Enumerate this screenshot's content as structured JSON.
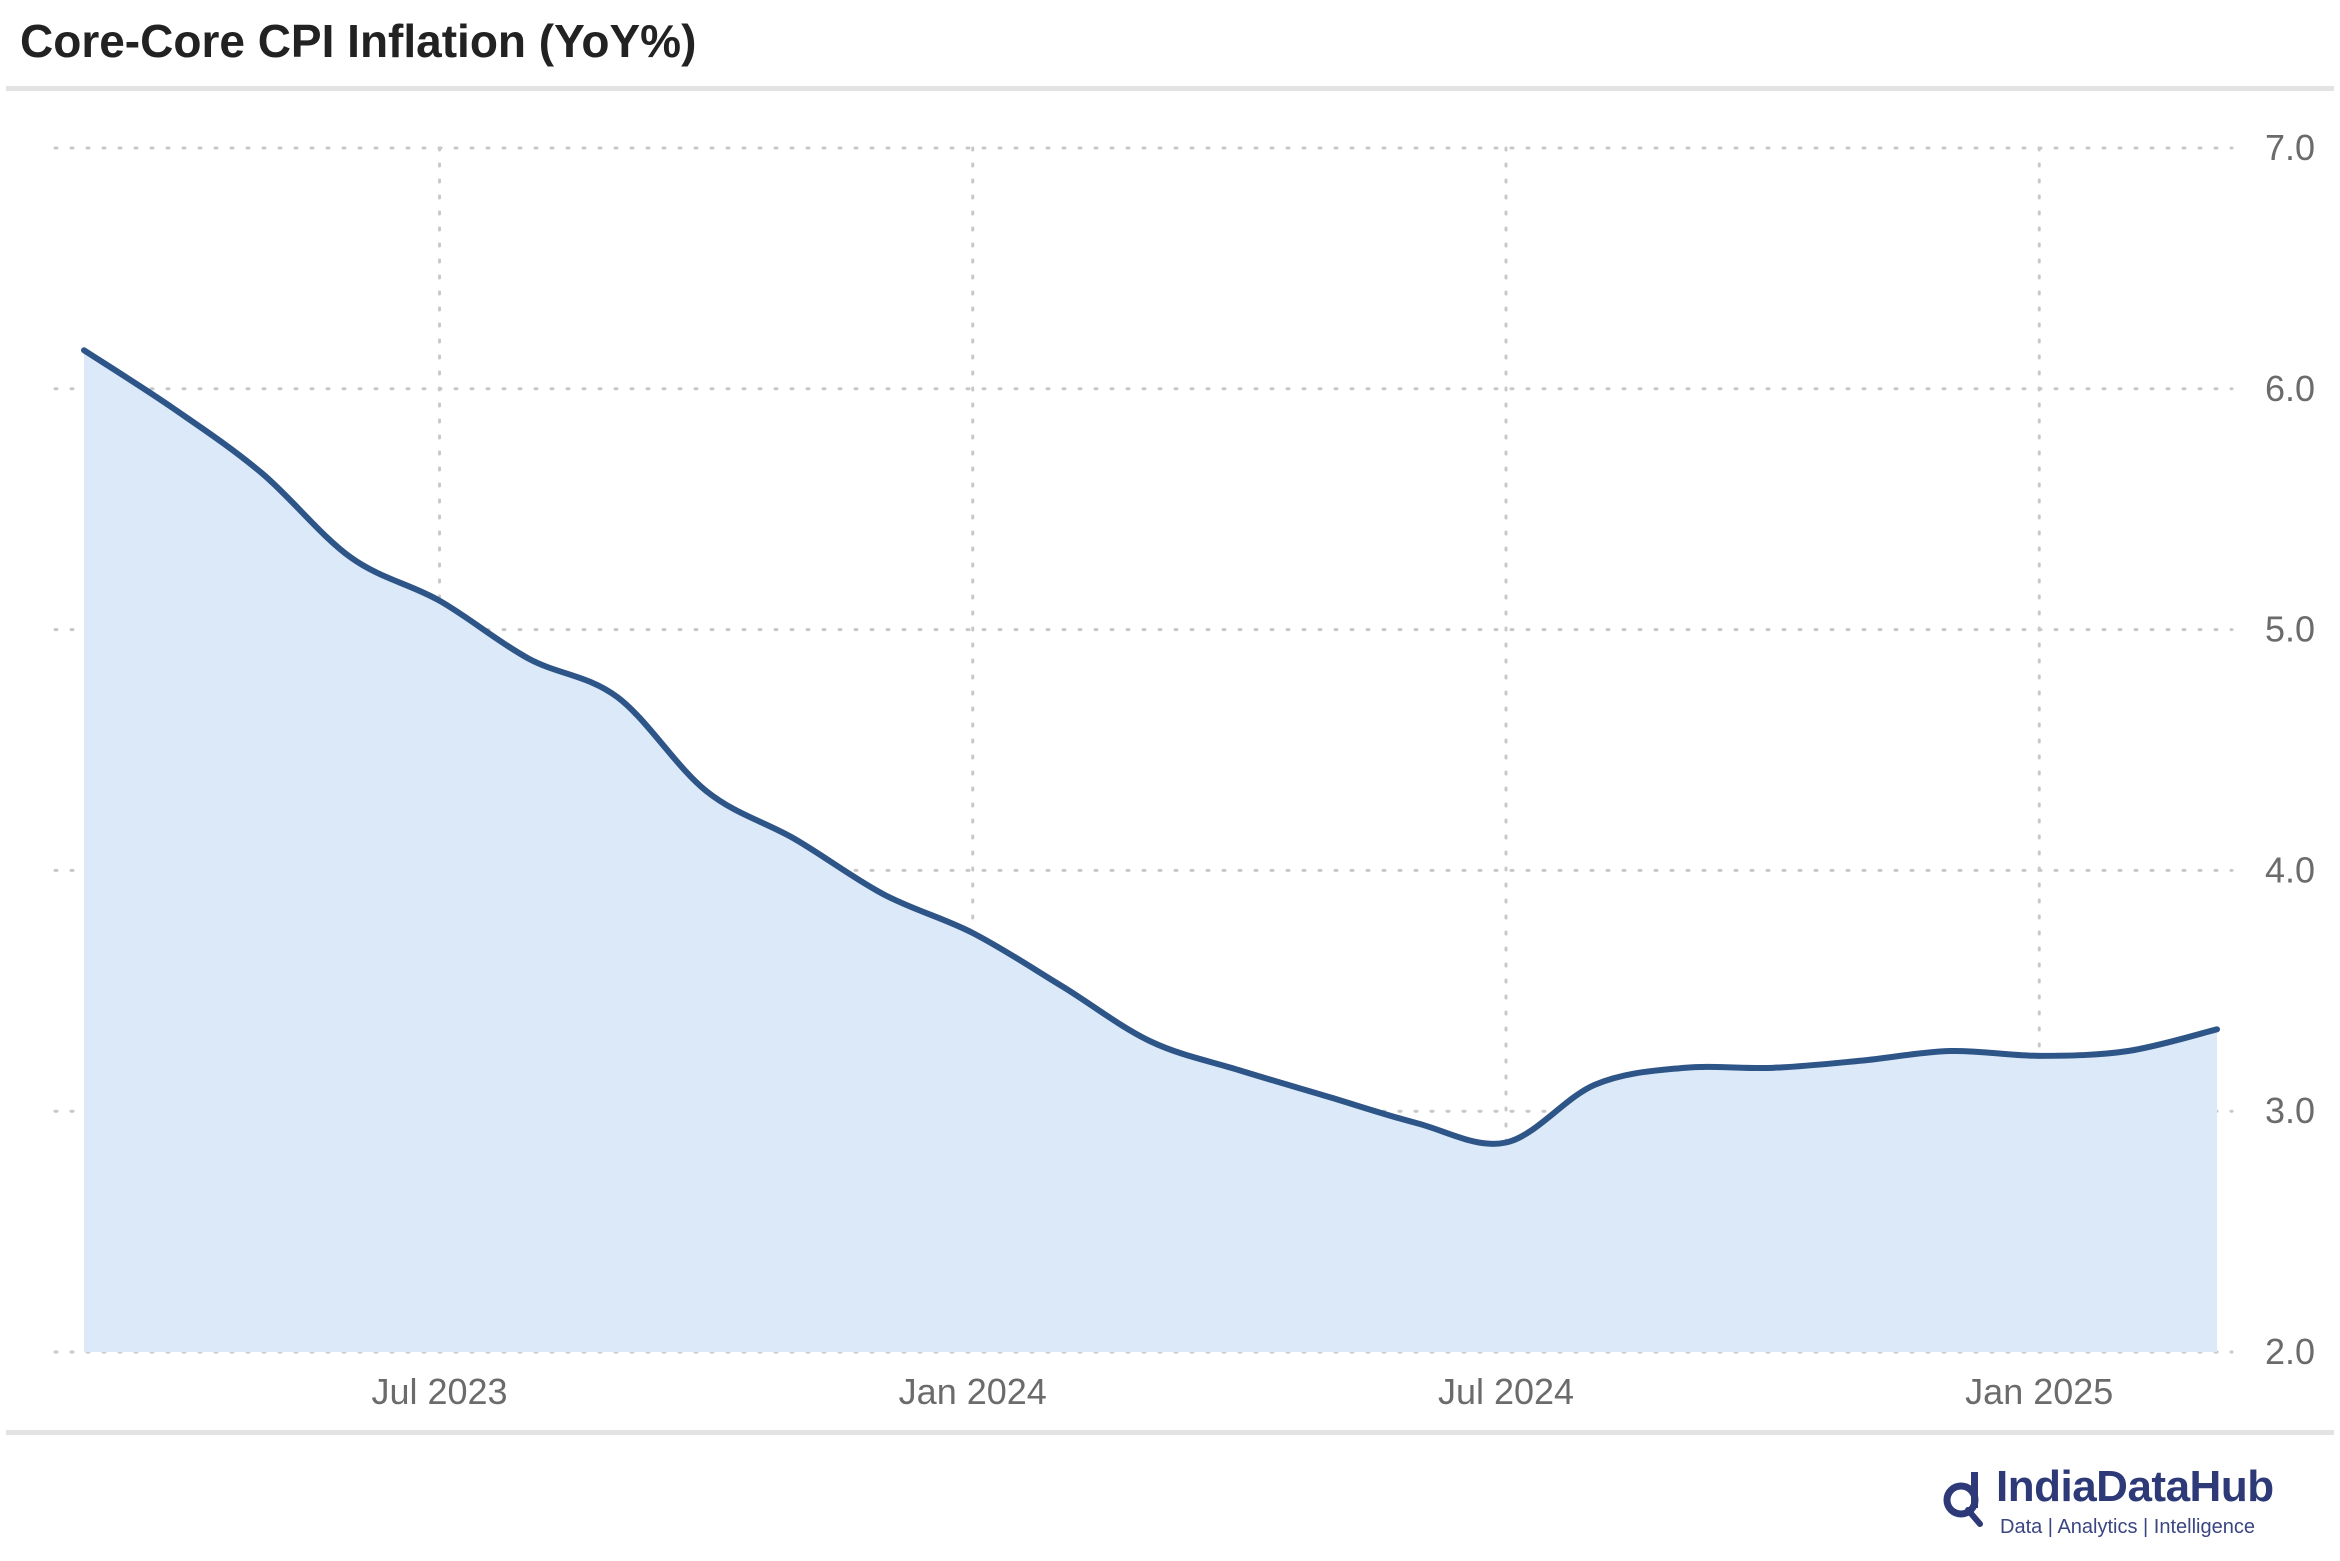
{
  "title": "Core-Core CPI Inflation (YoY%)",
  "brand": {
    "name": "IndiaDataHub",
    "tagline": "Data | Analytics | Intelligence"
  },
  "colors": {
    "line": "#2e5588",
    "area": "#dbe9f8",
    "grid": "#c8c8c8",
    "tick": "#6b6b6b",
    "brand": "#2e3a78"
  },
  "chart_data": {
    "type": "area",
    "title": "Core-Core CPI Inflation (YoY%)",
    "xlabel": "",
    "ylabel": "",
    "x": [
      "2023-03",
      "2023-04",
      "2023-05",
      "2023-06",
      "2023-07",
      "2023-08",
      "2023-09",
      "2023-10",
      "2023-11",
      "2023-12",
      "2024-01",
      "2024-02",
      "2024-03",
      "2024-04",
      "2024-05",
      "2024-06",
      "2024-07",
      "2024-08",
      "2024-09",
      "2024-10",
      "2024-11",
      "2024-12",
      "2025-01",
      "2025-02",
      "2025-03"
    ],
    "values": [
      6.16,
      5.92,
      5.65,
      5.3,
      5.12,
      4.88,
      4.72,
      4.33,
      4.13,
      3.9,
      3.74,
      3.52,
      3.29,
      3.17,
      3.06,
      2.95,
      2.87,
      3.11,
      3.18,
      3.18,
      3.21,
      3.25,
      3.23,
      3.25,
      3.34
    ],
    "x_ticks": [
      "Jul 2023",
      "Jan 2024",
      "Jul 2024",
      "Jan 2025"
    ],
    "x_tick_positions": [
      "2023-07",
      "2024-01",
      "2024-07",
      "2025-01"
    ],
    "y_ticks": [
      "2.0",
      "3.0",
      "4.0",
      "5.0",
      "6.0",
      "7.0"
    ],
    "ylim": [
      2.0,
      7.0
    ],
    "y_axis_position": "right",
    "grid": true,
    "legend": "none"
  }
}
